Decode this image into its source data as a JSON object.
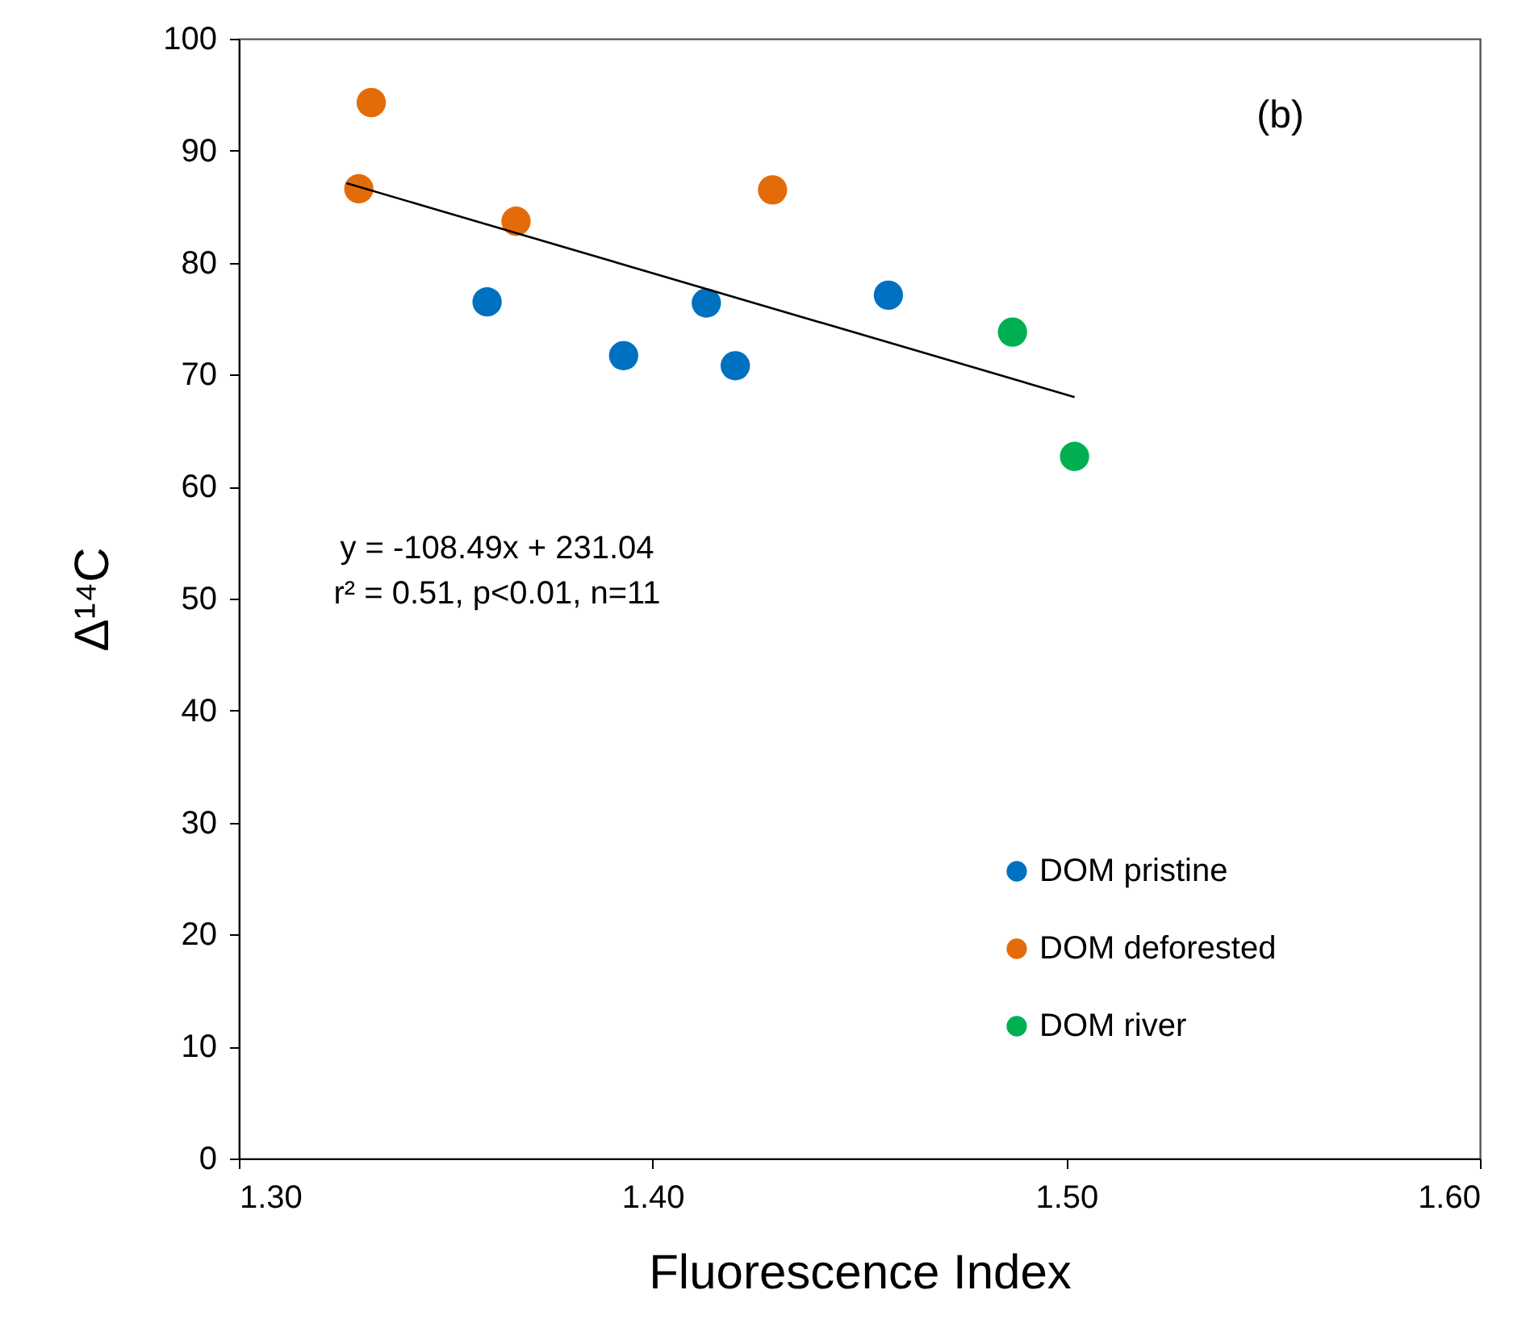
{
  "chart_data": {
    "type": "scatter",
    "xlabel": "Fluorescence Index",
    "ylabel": "Δ¹⁴C",
    "xlim": [
      1.3,
      1.6
    ],
    "xticks": [
      {
        "value": 1.3,
        "label": "1.30"
      },
      {
        "value": 1.4,
        "label": "1.40"
      },
      {
        "value": 1.5,
        "label": "1.50"
      },
      {
        "value": 1.6,
        "label": "1.60"
      }
    ],
    "ylim": [
      0,
      100
    ],
    "yticks": [
      0,
      10,
      20,
      30,
      40,
      50,
      60,
      70,
      80,
      90,
      100
    ],
    "grid": false,
    "legend": "bottom right",
    "annotations": [
      "(b)",
      "y = -108.49x + 231.04",
      "r² = 0.51, p<0.01, n=11"
    ],
    "series": [
      {
        "name": "DOM pristine",
        "color": "#0070c0",
        "x": [
          1.36,
          1.393,
          1.413,
          1.42,
          1.457
        ],
        "values": [
          76.5,
          71.7,
          76.4,
          70.8,
          77.1
        ],
        "marker": "circle"
      },
      {
        "name": "DOM deforested",
        "color": "#e36c09",
        "x": [
          1.332,
          1.329,
          1.367,
          1.429
        ],
        "values": [
          94.3,
          86.6,
          83.7,
          86.5
        ],
        "marker": "circle"
      },
      {
        "name": "DOM river",
        "color": "#00b050",
        "x": [
          1.487,
          1.502
        ],
        "values": [
          73.8,
          62.7
        ],
        "marker": "circle"
      },
      {
        "type": "line",
        "color": "#000000",
        "x": [
          1.326,
          1.502
        ],
        "values": [
          87.1,
          68.0
        ],
        "line_style": "solid",
        "marker": "none"
      }
    ]
  }
}
